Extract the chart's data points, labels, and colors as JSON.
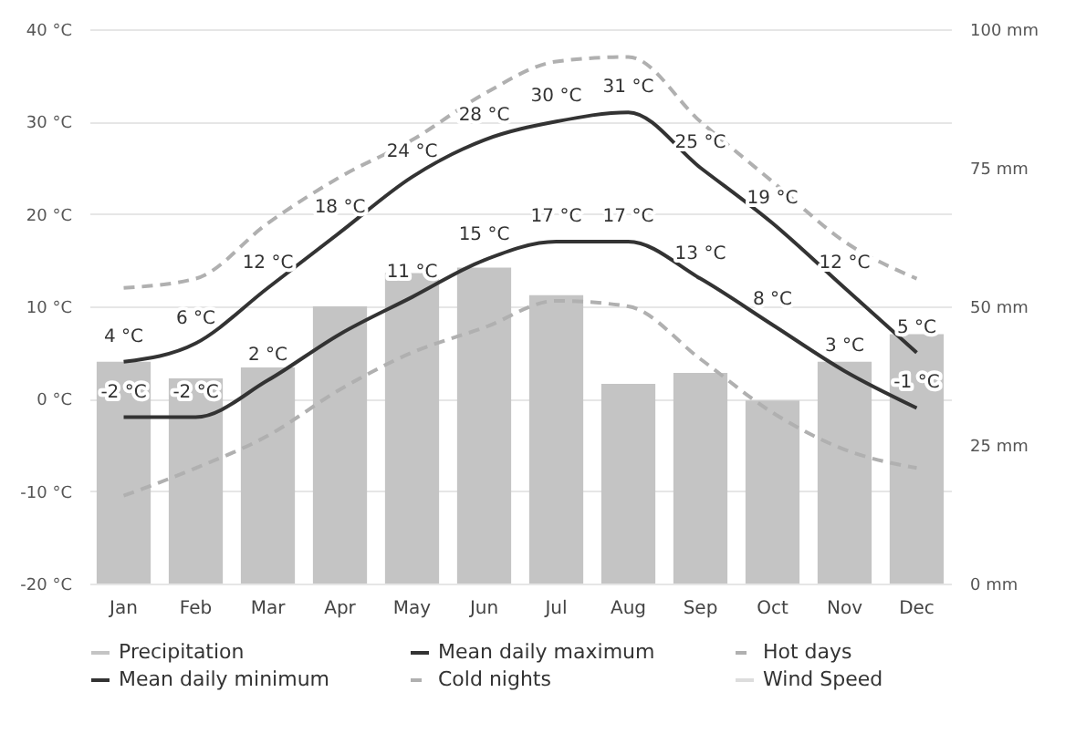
{
  "chart_data": {
    "type": "line",
    "categories": [
      "Jan",
      "Feb",
      "Mar",
      "Apr",
      "May",
      "Jun",
      "Jul",
      "Aug",
      "Sep",
      "Oct",
      "Nov",
      "Dec"
    ],
    "series": [
      {
        "name": "Precipitation",
        "type": "bar",
        "axis": "y2",
        "color": "#c4c4c4",
        "values": [
          40,
          37,
          39,
          50,
          56,
          57,
          52,
          36,
          38,
          33,
          40,
          45
        ]
      },
      {
        "name": "Mean daily maximum",
        "color": "#333333",
        "line_style": "solid",
        "values": [
          4,
          6,
          12,
          18,
          24,
          28,
          30,
          31,
          25,
          19,
          12,
          5
        ],
        "value_labels": [
          "4 °C",
          "6 °C",
          "12 °C",
          "18 °C",
          "24 °C",
          "28 °C",
          "30 °C",
          "31 °C",
          "25 °C",
          "19 °C",
          "12 °C",
          "5 °C"
        ]
      },
      {
        "name": "Hot days",
        "color": "#b0b0b0",
        "line_style": "dashed",
        "values": [
          12,
          13,
          19,
          24,
          28,
          33,
          36.5,
          37,
          30,
          23.5,
          17,
          13
        ]
      },
      {
        "name": "Mean daily minimum",
        "color": "#333333",
        "line_style": "solid",
        "values": [
          -2,
          -2,
          2,
          7,
          11,
          15,
          17,
          17,
          13,
          8,
          3,
          -1
        ],
        "value_labels": [
          "-2 °C",
          "-2 °C",
          "2 °C",
          null,
          "11 °C",
          "15 °C",
          "17 °C",
          "17 °C",
          "13 °C",
          "8 °C",
          "3 °C",
          "-1 °C"
        ]
      },
      {
        "name": "Cold nights",
        "color": "#b0b0b0",
        "line_style": "dashed",
        "values": [
          -10.5,
          -7.5,
          -4,
          1,
          5,
          7.7,
          10.6,
          10,
          4.3,
          -1.5,
          -5.5,
          -7.5
        ]
      },
      {
        "name": "Wind Speed",
        "color": "#dddddd",
        "line_style": "solid",
        "values": [
          null,
          null,
          null,
          null,
          null,
          null,
          null,
          null,
          null,
          null,
          null,
          null
        ]
      }
    ],
    "ylim": [
      -20,
      40
    ],
    "yticks": [
      {
        "value": -20,
        "label": "-20 °C"
      },
      {
        "value": -10,
        "label": "-10 °C"
      },
      {
        "value": 0,
        "label": "0 °C"
      },
      {
        "value": 10,
        "label": "10 °C"
      },
      {
        "value": 20,
        "label": "20 °C"
      },
      {
        "value": 30,
        "label": "30 °C"
      },
      {
        "value": 40,
        "label": "40 °C"
      }
    ],
    "y2lim": [
      0,
      100
    ],
    "y2ticks": [
      {
        "value": 0,
        "label": "0 mm"
      },
      {
        "value": 25,
        "label": "25 mm"
      },
      {
        "value": 50,
        "label": "50 mm"
      },
      {
        "value": 75,
        "label": "75 mm"
      },
      {
        "value": 100,
        "label": "100 mm"
      }
    ],
    "grid": "y",
    "legend": "bottom",
    "marker": "none"
  }
}
